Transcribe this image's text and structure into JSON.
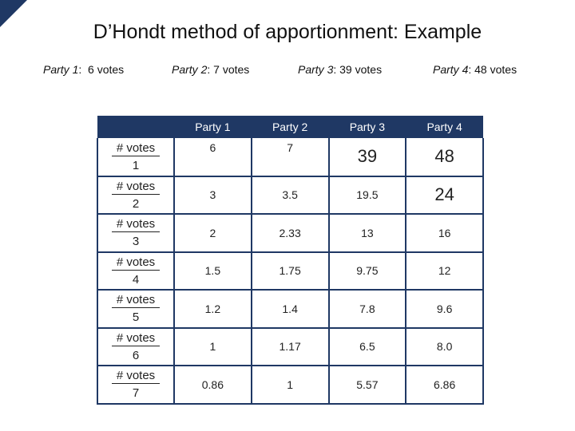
{
  "title": "D’Hondt method of apportionment: Example",
  "parties_summary": [
    {
      "name": "Party 1",
      "votes": "6 votes"
    },
    {
      "name": "Party 2",
      "votes": "7 votes"
    },
    {
      "name": "Party 3",
      "votes": "39 votes"
    },
    {
      "name": "Party 4",
      "votes": "48 votes"
    }
  ],
  "table": {
    "headers": [
      "Party 1",
      "Party 2",
      "Party 3",
      "Party 4"
    ],
    "row_label": "# votes",
    "rows": [
      {
        "divisor": "1",
        "values": [
          "6",
          "7",
          "39",
          "48"
        ]
      },
      {
        "divisor": "2",
        "values": [
          "3",
          "3.5",
          "19.5",
          "24"
        ]
      },
      {
        "divisor": "3",
        "values": [
          "2",
          "2.33",
          "13",
          "16"
        ]
      },
      {
        "divisor": "4",
        "values": [
          "1.5",
          "1.75",
          "9.75",
          "12"
        ]
      },
      {
        "divisor": "5",
        "values": [
          "1.2",
          "1.4",
          "7.8",
          "9.6"
        ]
      },
      {
        "divisor": "6",
        "values": [
          "1",
          "1.17",
          "6.5",
          "8.0"
        ]
      },
      {
        "divisor": "7",
        "values": [
          "0.86",
          "1",
          "5.57",
          "6.86"
        ]
      }
    ]
  },
  "colors": {
    "accent": "#1f3864"
  }
}
